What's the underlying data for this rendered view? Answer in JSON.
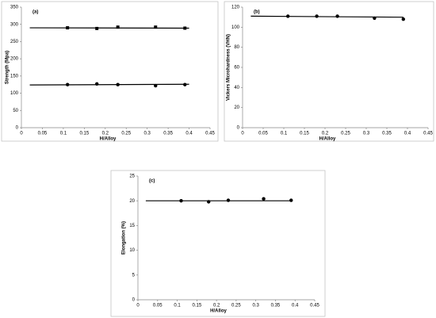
{
  "chart_data": [
    {
      "type": "scatter",
      "panel_label": "(a)",
      "x_label": "H/Alloy",
      "y_label": "Strength (Mpa)",
      "xlim": [
        0,
        0.45
      ],
      "xticks": [
        0,
        0.05,
        0.1,
        0.15,
        0.2,
        0.25,
        0.3,
        0.35,
        0.4,
        0.45
      ],
      "ylim": [
        0,
        350
      ],
      "yticks": [
        0,
        50,
        100,
        150,
        200,
        250,
        300,
        350
      ],
      "series": [
        {
          "marker": "square",
          "color": "#000000",
          "x": [
            0.11,
            0.18,
            0.23,
            0.32,
            0.39
          ],
          "values": [
            290,
            288,
            292,
            292,
            289
          ]
        },
        {
          "marker": "circle",
          "color": "#000000",
          "x": [
            0.11,
            0.18,
            0.23,
            0.32,
            0.39
          ],
          "values": [
            125,
            127,
            125,
            122,
            125
          ]
        }
      ],
      "trend_lines": [
        {
          "x": [
            0.02,
            0.4
          ],
          "values": [
            290,
            289
          ]
        },
        {
          "x": [
            0.02,
            0.4
          ],
          "values": [
            124,
            126
          ]
        }
      ]
    },
    {
      "type": "scatter",
      "panel_label": "(b)",
      "x_label": "H/Alloy",
      "y_label": "Vickers Microhardness (VHN)",
      "xlim": [
        0,
        0.45
      ],
      "xticks": [
        0,
        0.05,
        0.1,
        0.15,
        0.2,
        0.25,
        0.3,
        0.35,
        0.4,
        0.45
      ],
      "ylim": [
        0,
        120
      ],
      "yticks": [
        0,
        20,
        40,
        60,
        80,
        100,
        120
      ],
      "series": [
        {
          "marker": "circle",
          "color": "#000000",
          "x": [
            0.11,
            0.18,
            0.23,
            0.32,
            0.39
          ],
          "values": [
            111,
            111,
            111,
            109,
            108
          ]
        }
      ],
      "trend_lines": [
        {
          "x": [
            0.02,
            0.39
          ],
          "values": [
            111,
            110
          ]
        }
      ]
    },
    {
      "type": "scatter",
      "panel_label": "(c)",
      "x_label": "H/Alloy",
      "y_label": "Elongation (%)",
      "xlim": [
        0,
        0.45
      ],
      "xticks": [
        0,
        0.05,
        0.1,
        0.15,
        0.2,
        0.25,
        0.3,
        0.35,
        0.4,
        0.45
      ],
      "ylim": [
        0,
        25
      ],
      "yticks": [
        0,
        5,
        10,
        15,
        20,
        25
      ],
      "series": [
        {
          "marker": "circle",
          "color": "#000000",
          "x": [
            0.11,
            0.18,
            0.23,
            0.32,
            0.39
          ],
          "values": [
            20,
            19.8,
            20.1,
            20.4,
            20.1
          ]
        }
      ],
      "trend_lines": [
        {
          "x": [
            0.02,
            0.39
          ],
          "values": [
            20,
            20
          ]
        }
      ]
    }
  ]
}
